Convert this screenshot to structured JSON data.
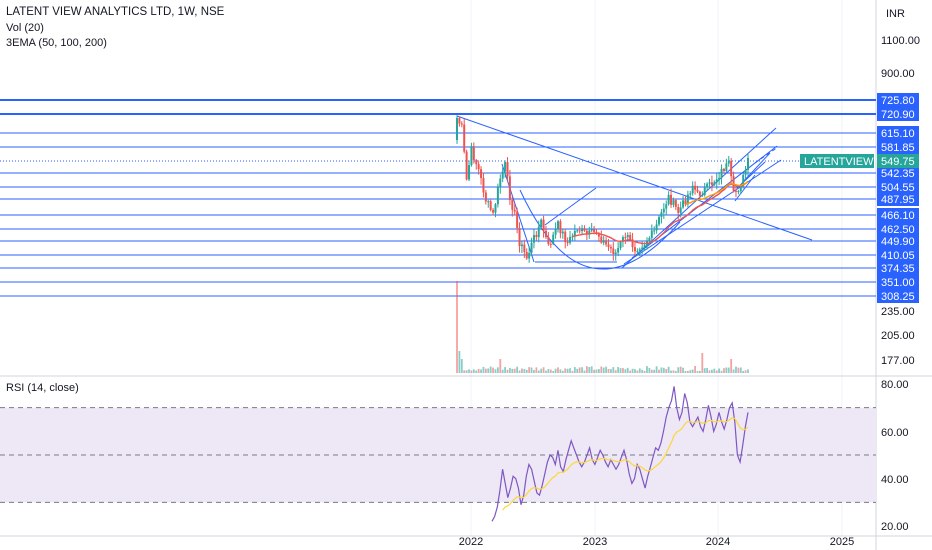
{
  "header": {
    "title": "LATENT VIEW ANALYTICS LTD, 1W, NSE",
    "vol_label": "Vol (20)",
    "ema_label": "3EMA (50, 100, 200)",
    "currency": "INR"
  },
  "rsi_panel": {
    "label": "RSI (14, close)"
  },
  "colors": {
    "up": "#26a69a",
    "down": "#ef5350",
    "level_line": "#2962ff",
    "level_badge": "#2962ff",
    "price_badge": "#26a69a",
    "ema_fast": "#ef5350",
    "ema_slow": "#ff9800",
    "rsi_line": "#7e57c2",
    "rsi_ma": "#fdd835",
    "rsi_band": "#ede7f6"
  },
  "chart_data": {
    "type": "candlestick",
    "symbol": "LATENTVIEW",
    "last_price": "549.75",
    "y_axis_ticks": [
      "1100.00",
      "900.00",
      "235.00",
      "205.00",
      "177.00"
    ],
    "horizontal_levels": [
      "725.80",
      "720.90",
      "615.10",
      "581.85",
      "542.35",
      "504.55",
      "487.95",
      "466.10",
      "462.50",
      "449.90",
      "410.05",
      "374.35",
      "351.00",
      "308.25"
    ],
    "x_axis_ticks": [
      "2022",
      "2023",
      "2024",
      "2025"
    ],
    "rsi": {
      "y_axis_ticks": [
        "80.00",
        "60.00",
        "40.00",
        "20.00"
      ],
      "overbought": 70,
      "middle": 50,
      "oversold": 30,
      "values": [
        22,
        24,
        28,
        35,
        44,
        38,
        32,
        36,
        41,
        40,
        36,
        29,
        33,
        41,
        46,
        44,
        39,
        34,
        33,
        37,
        42,
        47,
        50,
        49,
        46,
        52,
        45,
        43,
        48,
        52,
        56,
        53,
        50,
        47,
        45,
        47,
        50,
        53,
        48,
        46,
        49,
        52,
        50,
        47,
        45,
        48,
        46,
        44,
        46,
        49,
        52,
        48,
        42,
        38,
        40,
        46,
        44,
        40,
        36,
        41,
        45,
        49,
        53,
        52,
        55,
        60,
        66,
        70,
        73,
        79,
        70,
        65,
        68,
        76,
        72,
        64,
        62,
        64,
        66,
        62,
        60,
        65,
        71,
        66,
        60,
        63,
        68,
        64,
        61,
        65,
        70,
        72,
        64,
        50,
        47,
        54,
        62,
        68
      ]
    }
  }
}
